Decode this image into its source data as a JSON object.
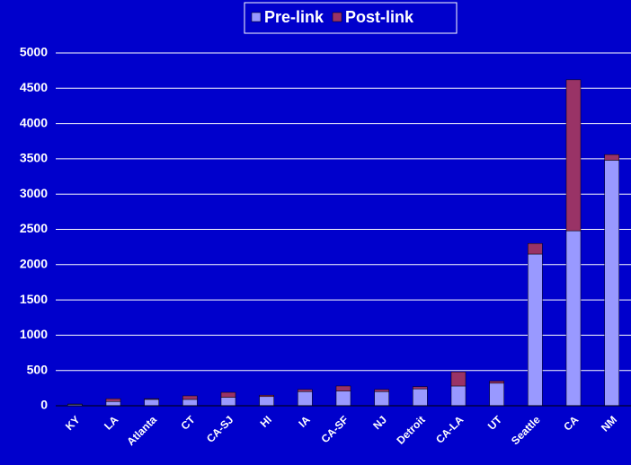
{
  "chart_data": {
    "type": "stacked_bar",
    "categories": [
      "KY",
      "LA",
      "Atlanta",
      "CT",
      "CA-SJ",
      "HI",
      "IA",
      "CA-SF",
      "NJ",
      "Detroit",
      "CA-LA",
      "UT",
      "Seattle",
      "CA",
      "NM"
    ],
    "series": [
      {
        "name": "Pre-link",
        "color": "#9999ff",
        "values": [
          20,
          60,
          90,
          90,
          120,
          130,
          200,
          210,
          200,
          240,
          280,
          320,
          2150,
          2480,
          3480
        ]
      },
      {
        "name": "Post-link",
        "color": "#993366",
        "values": [
          5,
          40,
          10,
          50,
          70,
          20,
          30,
          70,
          30,
          30,
          200,
          30,
          150,
          2140,
          80
        ]
      }
    ],
    "ylim": [
      0,
      5000
    ],
    "yticks": [
      0,
      500,
      1000,
      1500,
      2000,
      2500,
      3000,
      3500,
      4000,
      4500,
      5000
    ],
    "grid": true,
    "legend": "top"
  }
}
